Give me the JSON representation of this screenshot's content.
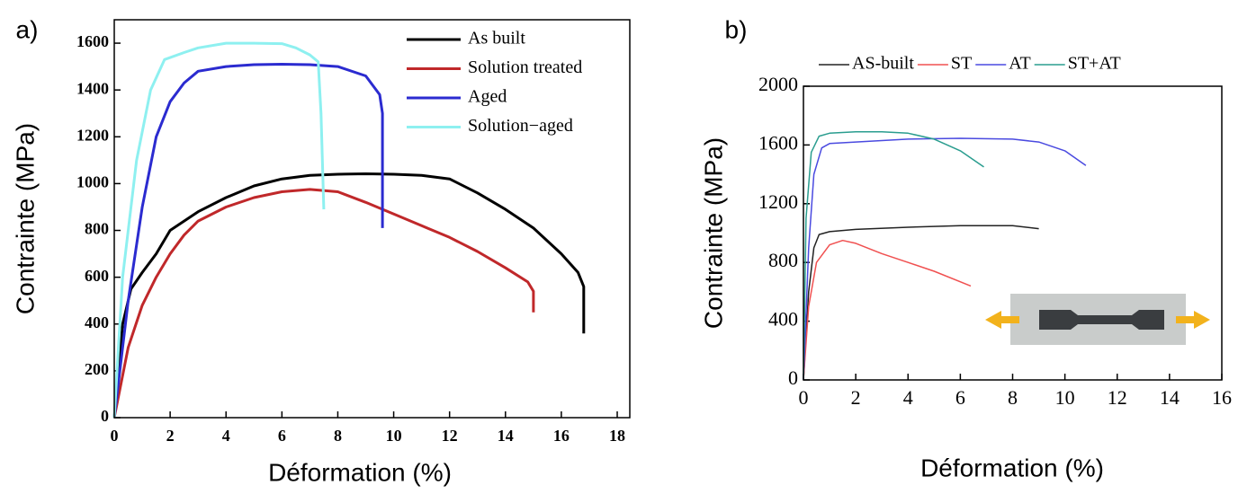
{
  "chart_data": [
    {
      "type": "line",
      "label": "a)",
      "xlabel": "Déformation (%)",
      "ylabel": "Contrainte (MPa)",
      "xlim": [
        0,
        18.45
      ],
      "ylim": [
        0,
        1700
      ],
      "xticks": [
        0,
        2,
        4,
        6,
        8,
        10,
        12,
        14,
        16,
        18
      ],
      "yticks": [
        0,
        200,
        400,
        600,
        800,
        1000,
        1200,
        1400,
        1600
      ],
      "legend": "upper right",
      "series": [
        {
          "name": "As built",
          "color": "#000000",
          "x": [
            0,
            0.3,
            0.6,
            1,
            1.5,
            2,
            3,
            4,
            5,
            6,
            7,
            8,
            9,
            10,
            11,
            12,
            13,
            14,
            15,
            16,
            16.6,
            16.8,
            16.8
          ],
          "values": [
            0,
            400,
            550,
            620,
            700,
            800,
            880,
            940,
            990,
            1020,
            1035,
            1040,
            1042,
            1040,
            1035,
            1020,
            960,
            890,
            810,
            700,
            620,
            560,
            360
          ]
        },
        {
          "name": "Solution treated",
          "color": "#c0282a",
          "x": [
            0,
            0.5,
            1,
            1.5,
            2,
            2.5,
            3,
            4,
            5,
            6,
            7,
            8,
            9,
            10,
            11,
            12,
            13,
            14,
            14.8,
            15,
            15
          ],
          "values": [
            0,
            300,
            480,
            600,
            700,
            780,
            840,
            900,
            940,
            965,
            975,
            965,
            920,
            870,
            820,
            770,
            710,
            640,
            580,
            540,
            450
          ]
        },
        {
          "name": "Aged",
          "color": "#2b2bd0",
          "x": [
            0,
            0.5,
            1,
            1.5,
            2,
            2.5,
            3,
            4,
            5,
            6,
            7,
            8,
            9,
            9.5,
            9.6,
            9.6
          ],
          "values": [
            0,
            500,
            900,
            1200,
            1350,
            1430,
            1480,
            1500,
            1508,
            1510,
            1508,
            1500,
            1460,
            1380,
            1300,
            810
          ]
        },
        {
          "name": "Solution−aged",
          "color": "#8ef0f0",
          "x": [
            0,
            0.3,
            0.8,
            1.3,
            1.8,
            2.5,
            3,
            4,
            5,
            6,
            6.5,
            7,
            7.3,
            7.4,
            7.5
          ],
          "values": [
            0,
            600,
            1100,
            1400,
            1530,
            1560,
            1580,
            1600,
            1600,
            1598,
            1580,
            1550,
            1520,
            1300,
            890
          ]
        }
      ]
    },
    {
      "type": "line",
      "label": "b)",
      "xlabel": "Déformation (%)",
      "ylabel": "Contrainte (MPa)",
      "xlim": [
        0,
        16
      ],
      "ylim": [
        0,
        2000
      ],
      "xticks": [
        0,
        2,
        4,
        6,
        8,
        10,
        12,
        14,
        16
      ],
      "yticks": [
        0,
        400,
        800,
        1200,
        1600,
        2000
      ],
      "legend": "top",
      "series": [
        {
          "name": "AS-built",
          "color": "#222222",
          "x": [
            0,
            0.2,
            0.4,
            0.6,
            1,
            2,
            4,
            6,
            8,
            9
          ],
          "values": [
            0,
            600,
            900,
            990,
            1010,
            1025,
            1040,
            1050,
            1050,
            1030
          ]
        },
        {
          "name": "ST",
          "color": "#f05050",
          "x": [
            0,
            0.2,
            0.5,
            1,
            1.5,
            2,
            3,
            4,
            5,
            6.4
          ],
          "values": [
            0,
            500,
            800,
            920,
            950,
            930,
            860,
            800,
            740,
            640
          ]
        },
        {
          "name": "AT",
          "color": "#4a4ae0",
          "x": [
            0,
            0.2,
            0.4,
            0.7,
            1,
            2,
            4,
            6,
            8,
            9,
            10,
            10.8
          ],
          "values": [
            0,
            900,
            1400,
            1580,
            1610,
            1620,
            1640,
            1645,
            1640,
            1620,
            1560,
            1460
          ]
        },
        {
          "name": "ST+AT",
          "color": "#2a9d8f",
          "x": [
            0,
            0.1,
            0.3,
            0.6,
            1,
            2,
            3,
            4,
            5,
            6,
            6.9
          ],
          "values": [
            0,
            1100,
            1550,
            1660,
            1680,
            1690,
            1690,
            1680,
            1640,
            1560,
            1450
          ]
        }
      ]
    }
  ]
}
